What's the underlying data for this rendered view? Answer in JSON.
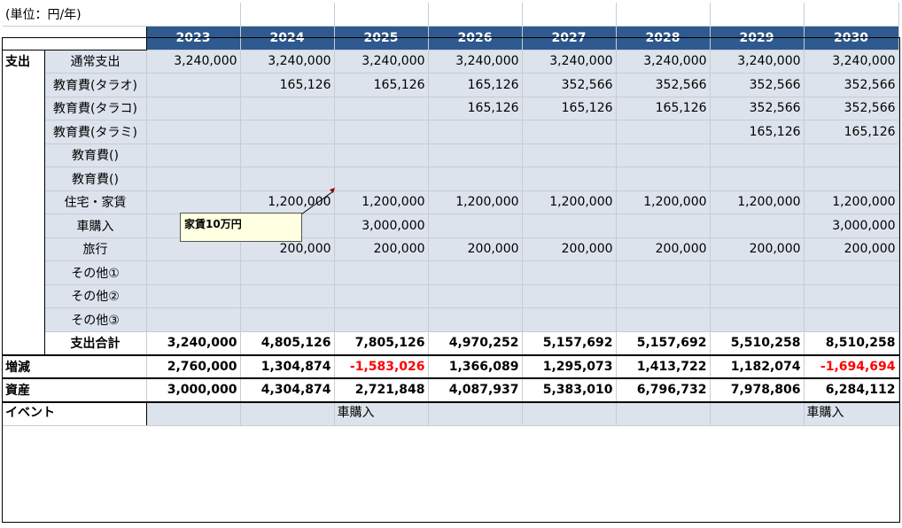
{
  "unit_label": "(単位：円/年)",
  "years": [
    "2023",
    "2024",
    "2025",
    "2026",
    "2027",
    "2028",
    "2029",
    "2030"
  ],
  "section_expense": "支出",
  "rows": [
    {
      "label": "通常支出",
      "values": [
        "3,240,000",
        "3,240,000",
        "3,240,000",
        "3,240,000",
        "3,240,000",
        "3,240,000",
        "3,240,000",
        "3,240,000"
      ]
    },
    {
      "label": "教育費(タラオ)",
      "values": [
        "",
        "165,126",
        "165,126",
        "165,126",
        "352,566",
        "352,566",
        "352,566",
        "352,566"
      ]
    },
    {
      "label": "教育費(タラコ)",
      "values": [
        "",
        "",
        "",
        "165,126",
        "165,126",
        "165,126",
        "352,566",
        "352,566"
      ]
    },
    {
      "label": "教育費(タラミ)",
      "values": [
        "",
        "",
        "",
        "",
        "",
        "",
        "165,126",
        "165,126"
      ]
    },
    {
      "label": "教育費()",
      "values": [
        "",
        "",
        "",
        "",
        "",
        "",
        "",
        ""
      ]
    },
    {
      "label": "教育費()",
      "values": [
        "",
        "",
        "",
        "",
        "",
        "",
        "",
        ""
      ]
    },
    {
      "label": "住宅・家賃",
      "values": [
        "",
        "1,200,000",
        "1,200,000",
        "1,200,000",
        "1,200,000",
        "1,200,000",
        "1,200,000",
        "1,200,000"
      ]
    },
    {
      "label": "車購入",
      "values": [
        "",
        "",
        "3,000,000",
        "",
        "",
        "",
        "",
        "3,000,000"
      ]
    },
    {
      "label": "旅行",
      "values": [
        "",
        "200,000",
        "200,000",
        "200,000",
        "200,000",
        "200,000",
        "200,000",
        "200,000"
      ]
    },
    {
      "label": "その他①",
      "values": [
        "",
        "",
        "",
        "",
        "",
        "",
        "",
        ""
      ]
    },
    {
      "label": "その他②",
      "values": [
        "",
        "",
        "",
        "",
        "",
        "",
        "",
        ""
      ]
    },
    {
      "label": "その他③",
      "values": [
        "",
        "",
        "",
        "",
        "",
        "",
        "",
        ""
      ]
    }
  ],
  "total": {
    "label": "支出合計",
    "values": [
      "3,240,000",
      "4,805,126",
      "7,805,126",
      "4,970,252",
      "5,157,692",
      "5,157,692",
      "5,510,258",
      "8,510,258"
    ]
  },
  "change": {
    "label": "増減",
    "values": [
      "2,760,000",
      "1,304,874",
      "-1,583,026",
      "1,366,089",
      "1,295,073",
      "1,413,722",
      "1,182,074",
      "-1,694,694"
    ]
  },
  "assets": {
    "label": "資産",
    "values": [
      "3,000,000",
      "4,304,874",
      "2,721,848",
      "4,087,937",
      "5,383,010",
      "6,796,732",
      "7,978,806",
      "6,284,112"
    ]
  },
  "event": {
    "label": "イベント",
    "values": [
      "",
      "",
      "車購入",
      "",
      "",
      "",
      "",
      "車購入"
    ]
  },
  "comment": "家賃10万円",
  "colors": {
    "header_bg": "#2f5a8f",
    "cell_bg": "#dce3ed",
    "negative": "#ff0000",
    "comment_bg": "#ffffe1"
  }
}
